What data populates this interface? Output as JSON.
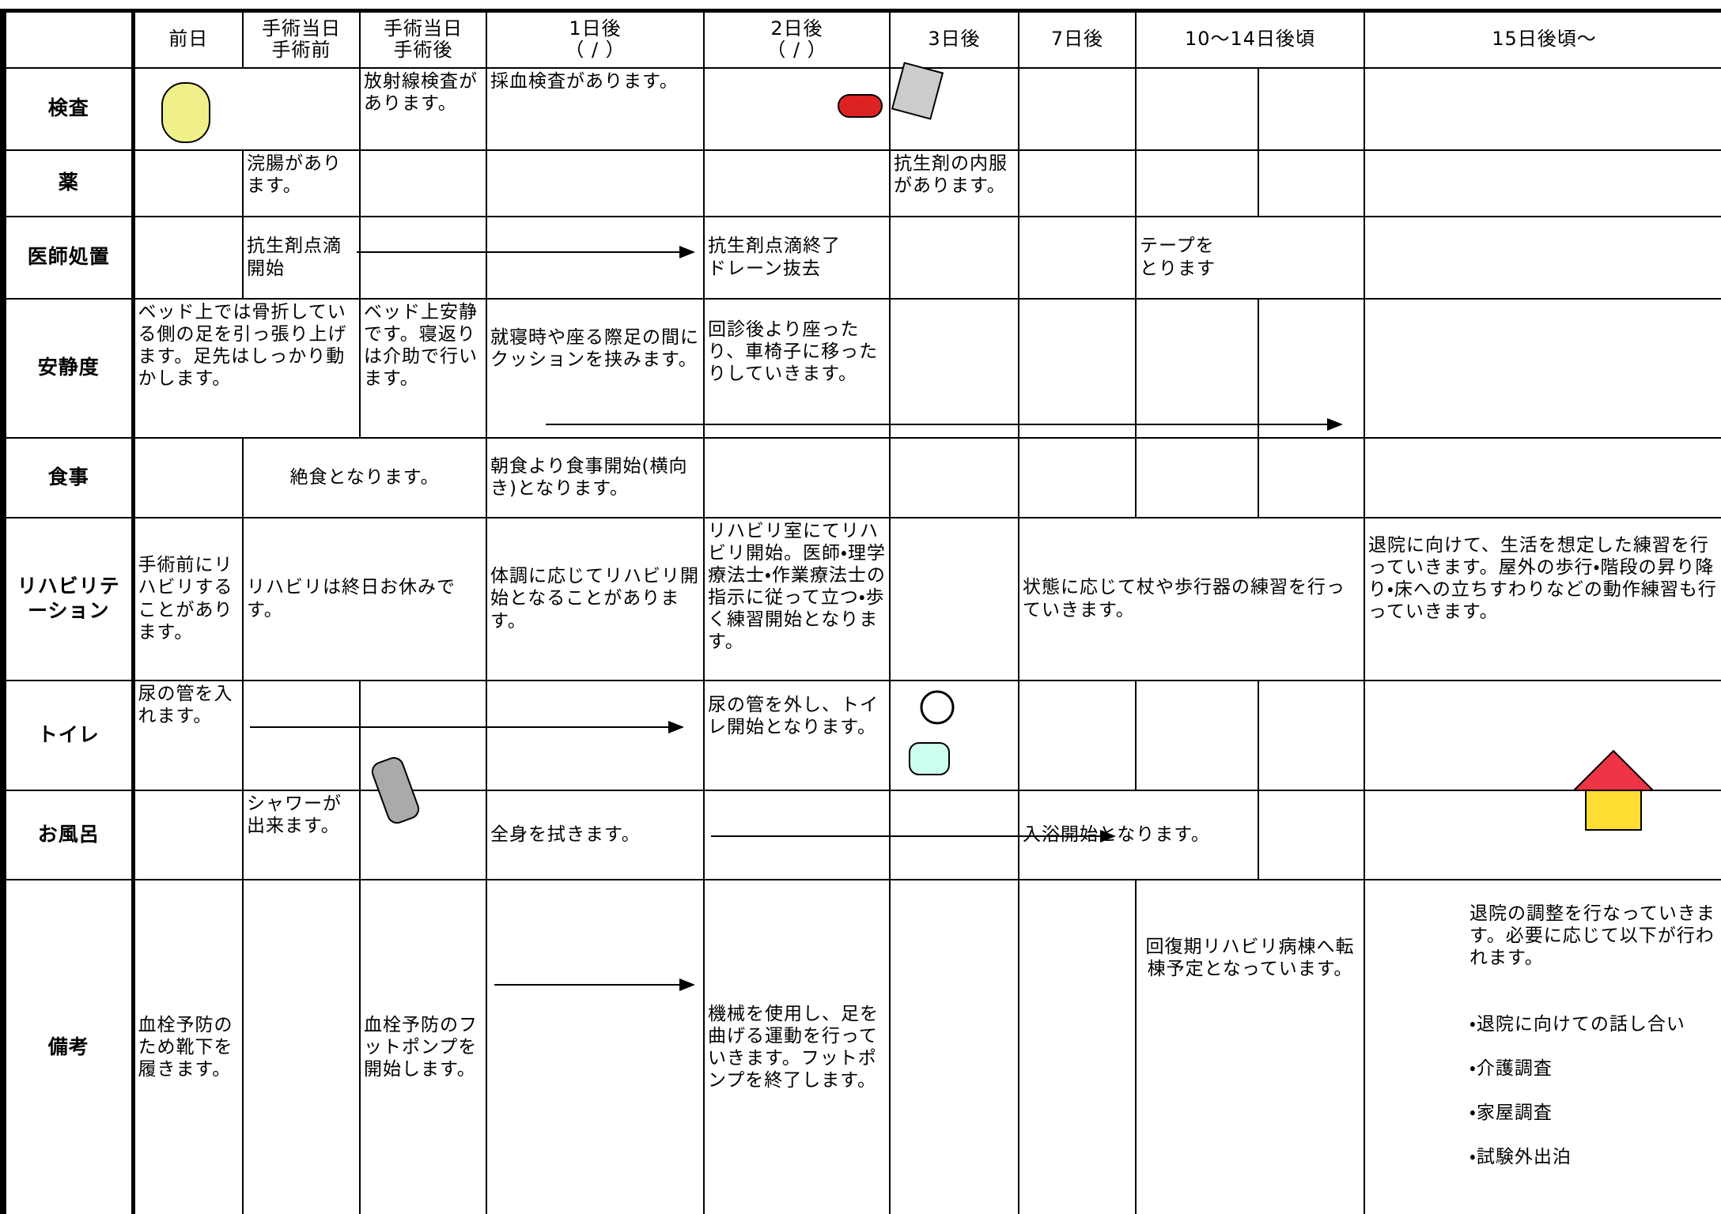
{
  "header": {
    "days": [
      "前日",
      "手術当日\n手術前",
      "手術当日\n手術後",
      "1日後\n（ / ）",
      "2日後\n（ / ）",
      "3日後",
      "7日後",
      "10〜14日後頃",
      "15日後頃〜"
    ]
  },
  "rows": [
    {
      "label": "検査",
      "post_op": "放射線検査があります。",
      "day1": "採血検査があります。"
    },
    {
      "label": "薬",
      "pre_op": "浣腸があります。",
      "day3": "抗生剤の内服があります。"
    },
    {
      "label": "医師処置",
      "pre_op": "抗生剤点滴開始",
      "day2": "抗生剤点滴終了\nドレーン抜去",
      "day10": "テープを\nとります"
    },
    {
      "label": "安静度",
      "day0": "ベッド上では骨折している側の足を引っ張り上げます。足先はしっかり動かします。",
      "post_op": "ベッド上安静です。寝返りは介助で行います。",
      "day1": "就寝時や座る際足の間にクッションを挟みます。",
      "day2": "回診後より座ったり、車椅子に移ったりしていきます。"
    },
    {
      "label": "食事",
      "pre_op": "絶食となります。",
      "day1": "朝食より食事開始(横向き)となります。"
    },
    {
      "label": "リハビリテーション",
      "day0": "手術前にリハビリすることがあります。",
      "pre_op": "リハビリは終日お休みです。",
      "day1": "体調に応じてリハビリ開始となることがあります。",
      "day2": "リハビリ室にてリハビリ開始。医師・理学療法士・作業療法士の指示に従って立つ・歩く練習開始となります。",
      "day7": "状態に応じて杖や歩行器の練習を行っていきます。",
      "day15": "退院に向けて、生活を想定した練習を行っていきます。屋外の歩行・階段の昇り降り・床への立ちすわりなどの動作練習も行っていきます。"
    },
    {
      "label": "トイレ",
      "day0": "尿の管を入れます。",
      "day2": "尿の管を外し、トイレ開始となります。"
    },
    {
      "label": "お風呂",
      "pre_op": "シャワーが出来ます。",
      "day1": "全身を拭きます。",
      "day10": "入浴開始となります。"
    },
    {
      "label": "備考",
      "day0": "血栓予防のため靴下を履きます。",
      "post_op": "血栓予防のフットポンプを開始します。",
      "day2": "機械を使用し、足を曲げる運動を行っていきます。フットポンプを終了します。",
      "day10": "回復期リハビリ病棟へ転棟予定となっています。",
      "day15": {
        "text": "退院の調整を行なっていきます。必要に応じて以下が行われます。",
        "items": [
          "・退院に向けての話し合い",
          "・介護調査",
          "・家屋調査",
          "・試験外出泊"
        ]
      }
    }
  ]
}
